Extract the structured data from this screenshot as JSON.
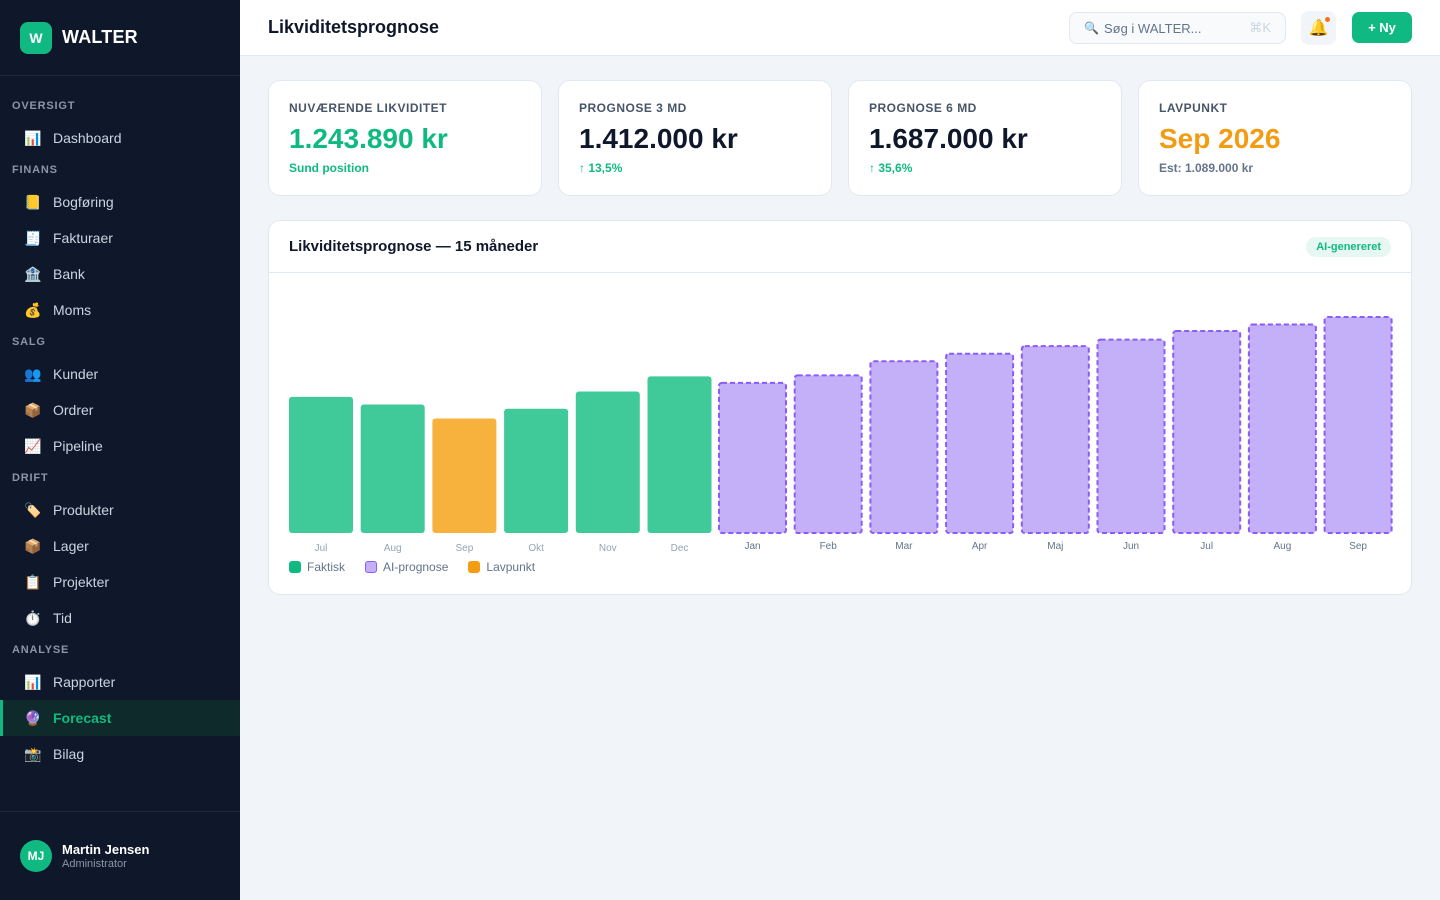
{
  "app": {
    "logo_letter": "W",
    "name": "WALTER"
  },
  "sidebar": {
    "sections": [
      {
        "label": "OVERSIGT",
        "items": [
          {
            "icon": "📊",
            "icon_name": "bar-chart-icon",
            "label": "Dashboard"
          }
        ]
      },
      {
        "label": "FINANS",
        "items": [
          {
            "icon": "📒",
            "icon_name": "ledger-icon",
            "label": "Bogføring"
          },
          {
            "icon": "🧾",
            "icon_name": "receipt-icon",
            "label": "Fakturaer"
          },
          {
            "icon": "🏦",
            "icon_name": "bank-icon",
            "label": "Bank"
          },
          {
            "icon": "💰",
            "icon_name": "money-bag-icon",
            "label": "Moms"
          }
        ]
      },
      {
        "label": "SALG",
        "items": [
          {
            "icon": "👥",
            "icon_name": "users-icon",
            "label": "Kunder"
          },
          {
            "icon": "📦",
            "icon_name": "package-icon",
            "label": "Ordrer"
          },
          {
            "icon": "📈",
            "icon_name": "trend-up-icon",
            "label": "Pipeline"
          }
        ]
      },
      {
        "label": "DRIFT",
        "items": [
          {
            "icon": "🏷️",
            "icon_name": "tag-icon",
            "label": "Produkter"
          },
          {
            "icon": "📦",
            "icon_name": "package-icon",
            "label": "Lager"
          },
          {
            "icon": "📋",
            "icon_name": "clipboard-icon",
            "label": "Projekter"
          },
          {
            "icon": "⏱️",
            "icon_name": "stopwatch-icon",
            "label": "Tid"
          }
        ]
      },
      {
        "label": "ANALYSE",
        "items": [
          {
            "icon": "📊",
            "icon_name": "bar-chart-icon",
            "label": "Rapporter"
          },
          {
            "icon": "🔮",
            "icon_name": "crystal-ball-icon",
            "label": "Forecast",
            "active": true
          },
          {
            "icon": "📸",
            "icon_name": "camera-icon",
            "label": "Bilag"
          }
        ]
      }
    ]
  },
  "user": {
    "initials": "MJ",
    "name": "Martin Jensen",
    "role": "Administrator"
  },
  "header": {
    "title": "Likviditetsprognose",
    "search_placeholder": "Søg i WALTER...",
    "search_icon": "🔍",
    "search_shortcut": "⌘K",
    "bell_icon": "🔔",
    "new_button_label": "+ Ny"
  },
  "kpis": [
    {
      "label": "NUVÆRENDE LIKVIDITET",
      "value": "1.243.890 kr",
      "value_color": "#10b981",
      "sub": "Sund position",
      "sub_color": "#10b981"
    },
    {
      "label": "PROGNOSE 3 MD",
      "value": "1.412.000 kr",
      "value_color": "#0f172a",
      "sub": "↑ 13,5%",
      "sub_color": "#10b981"
    },
    {
      "label": "PROGNOSE 6 MD",
      "value": "1.687.000 kr",
      "value_color": "#0f172a",
      "sub": "↑ 35,6%",
      "sub_color": "#10b981"
    },
    {
      "label": "LAVPUNKT",
      "value": "Sep 2026",
      "value_color": "#f39c12",
      "sub": "Est: 1.089.000 kr",
      "sub_color": "#64748b"
    }
  ],
  "chart_card": {
    "title": "Likviditetsprognose — 15 måneder",
    "badge": "AI-genereret"
  },
  "chart_data": {
    "type": "bar",
    "categories": [
      "Jul",
      "Aug",
      "Sep",
      "Okt",
      "Nov",
      "Dec",
      "Jan",
      "Feb",
      "Mar",
      "Apr",
      "Maj",
      "Jun",
      "Jul",
      "Aug",
      "Sep"
    ],
    "series": [
      {
        "name": "Faktisk",
        "color": "#40c999",
        "values": [
          0.63,
          0.595,
          null,
          0.575,
          0.655,
          0.725,
          null,
          null,
          null,
          null,
          null,
          null,
          null,
          null,
          null
        ]
      },
      {
        "name": "AI-prognose",
        "color": "#c4b0f8",
        "border_color": "#8b5cf6",
        "values": [
          null,
          null,
          null,
          null,
          null,
          null,
          0.695,
          0.73,
          0.795,
          0.83,
          0.865,
          0.895,
          0.935,
          0.965,
          1.0
        ]
      },
      {
        "name": "Lavpunkt",
        "color": "#f7b13d",
        "values": [
          null,
          null,
          0.53,
          null,
          null,
          null,
          null,
          null,
          null,
          null,
          null,
          null,
          null,
          null,
          null
        ]
      }
    ],
    "value_scale": "relative (no axis printed)",
    "ylim": [
      0,
      1
    ],
    "grid": false,
    "legend_position": "bottom-left"
  },
  "legend": [
    {
      "label": "Faktisk",
      "color": "#10b981"
    },
    {
      "label": "AI-prognose",
      "color": "#c4b0f8",
      "border": "#8b5cf6"
    },
    {
      "label": "Lavpunkt",
      "color": "#f39c12"
    }
  ]
}
